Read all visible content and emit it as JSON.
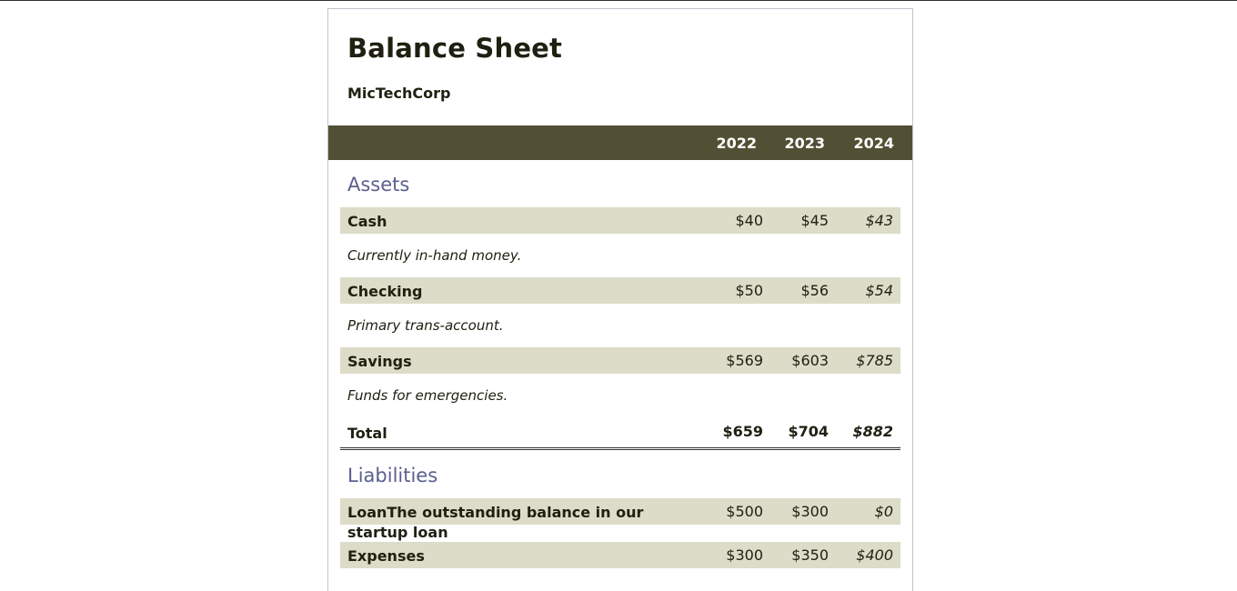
{
  "document": {
    "title": "Balance Sheet",
    "company": "MicTechCorp"
  },
  "years": [
    "2022",
    "2023",
    "2024"
  ],
  "assets": {
    "title": "Assets",
    "rows": [
      {
        "label": "Cash",
        "values": [
          "$40",
          "$45",
          "$43"
        ],
        "note": "Currently in-hand money."
      },
      {
        "label": "Checking",
        "values": [
          "$50",
          "$56",
          "$54"
        ],
        "note": "Primary trans-account."
      },
      {
        "label": "Savings",
        "values": [
          "$569",
          "$603",
          "$785"
        ],
        "note": "Funds for emergencies."
      }
    ],
    "total": {
      "label": "Total",
      "values": [
        "$659",
        "$704",
        "$882"
      ]
    }
  },
  "liabilities": {
    "title": "Liabilities",
    "rows": [
      {
        "label": "LoanThe outstanding balance in our startup loan",
        "values": [
          "$500",
          "$300",
          "$0"
        ]
      },
      {
        "label": "Expenses",
        "values": [
          "$300",
          "$350",
          "$400"
        ]
      }
    ]
  }
}
